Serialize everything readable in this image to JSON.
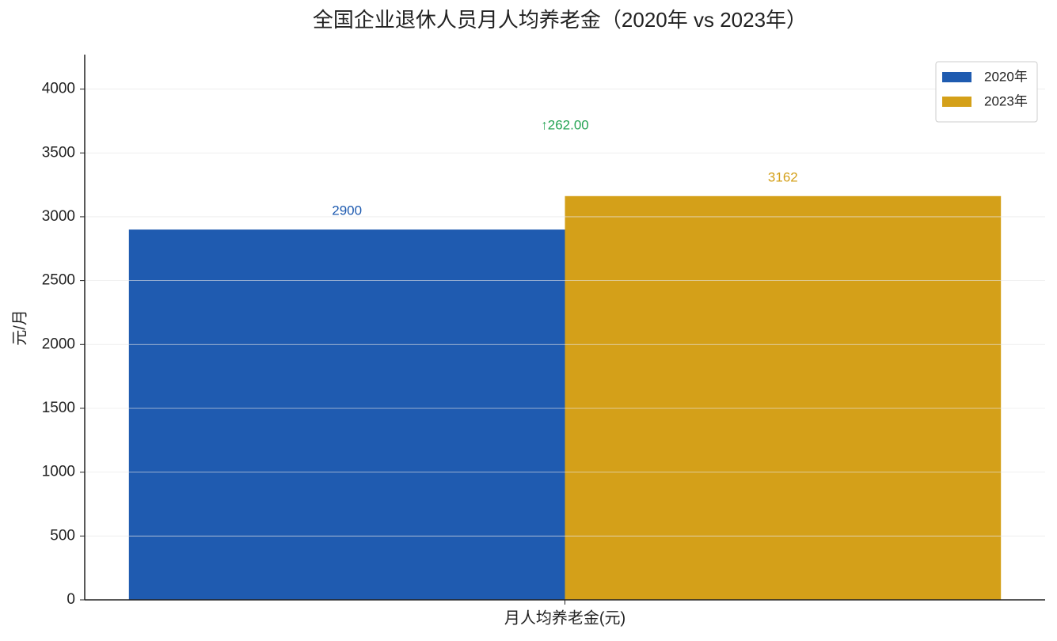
{
  "chart_data": {
    "type": "bar",
    "title": "全国企业退休人员月人均养老金（2020年 vs 2023年）",
    "y_label": "元/月",
    "categories": [
      "月人均养老金(元)"
    ],
    "series": [
      {
        "name": "2020年",
        "color": "#1f5bb0",
        "values": [
          2900
        ]
      },
      {
        "name": "2023年",
        "color": "#d4a019",
        "values": [
          3162
        ]
      }
    ],
    "annotation": {
      "text": "↑262.00",
      "color": "#27a455"
    },
    "ylim": [
      0,
      4270
    ],
    "yticks": [
      0,
      500,
      1000,
      1500,
      2000,
      2500,
      3000,
      3500,
      4000
    ],
    "grid": true,
    "legend": "upper right"
  }
}
